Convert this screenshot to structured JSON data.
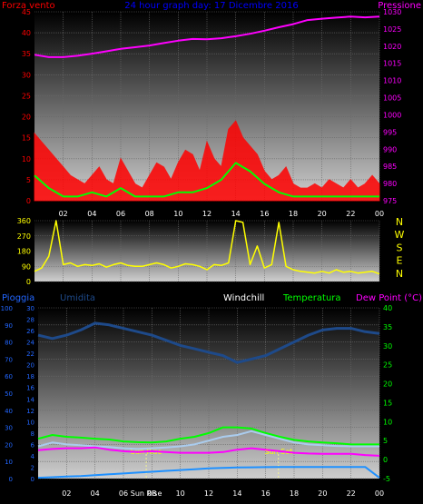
{
  "chart_data": [
    {
      "panel": "wind",
      "type": "line",
      "title": "24 hour graph day: 17 Dicembre 2016",
      "left_label": "Forza vento",
      "right_label": "Pressione",
      "left_ticks": [
        0,
        5,
        10,
        15,
        20,
        25,
        30,
        35,
        40,
        45
      ],
      "right_ticks": [
        975,
        980,
        985,
        990,
        995,
        1000,
        1005,
        1010,
        1015,
        1020,
        1025,
        1030
      ],
      "x_ticks": [
        "02",
        "04",
        "06",
        "08",
        "10",
        "12",
        "14",
        "16",
        "18",
        "20",
        "22",
        "00"
      ],
      "ylim_left": [
        0,
        45
      ],
      "ylim_right": [
        975,
        1030
      ],
      "series": [
        {
          "name": "Pressione",
          "color": "#ff00ff",
          "axis": "right",
          "x": [
            0,
            1,
            2,
            3,
            4,
            5,
            6,
            7,
            8,
            9,
            10,
            11,
            12,
            13,
            14,
            15,
            16,
            17,
            18,
            19,
            20,
            21,
            22,
            23,
            24
          ],
          "y": [
            1017.5,
            1016.8,
            1016.8,
            1017.2,
            1017.8,
            1018.5,
            1019.2,
            1019.7,
            1020.2,
            1020.9,
            1021.6,
            1022.1,
            1022.0,
            1022.3,
            1022.9,
            1023.6,
            1024.5,
            1025.5,
            1026.4,
            1027.6,
            1028.0,
            1028.3,
            1028.6,
            1028.4,
            1028.6
          ]
        },
        {
          "name": "Raffica",
          "color": "#ff0000",
          "axis": "left",
          "x": [
            0,
            0.5,
            1,
            1.5,
            2,
            2.5,
            3,
            3.5,
            4,
            4.5,
            5,
            5.5,
            6,
            6.5,
            7,
            7.5,
            8,
            8.5,
            9,
            9.5,
            10,
            10.5,
            11,
            11.5,
            12,
            12.5,
            13,
            13.5,
            14,
            14.5,
            15,
            15.5,
            16,
            16.5,
            17,
            17.5,
            18,
            18.5,
            19,
            19.5,
            20,
            20.5,
            21,
            21.5,
            22,
            22.5,
            23,
            23.5,
            24
          ],
          "y": [
            16,
            14,
            12,
            10,
            8,
            6,
            5,
            4,
            6,
            8,
            5,
            4,
            10,
            7,
            4,
            3,
            6,
            9,
            8,
            5,
            9,
            12,
            11,
            7,
            14,
            10,
            8,
            17,
            19,
            15,
            13,
            11,
            7,
            5,
            6,
            8,
            4,
            3,
            3,
            4,
            3,
            5,
            4,
            3,
            5,
            3,
            4,
            6,
            4
          ]
        },
        {
          "name": "Vento medio",
          "color": "#00ff00",
          "axis": "left",
          "x": [
            0,
            1,
            2,
            3,
            4,
            5,
            6,
            7,
            8,
            9,
            10,
            11,
            12,
            13,
            14,
            15,
            16,
            17,
            18,
            19,
            20,
            21,
            22,
            23,
            24
          ],
          "y": [
            6,
            3,
            1,
            1,
            2,
            1,
            3,
            1,
            1,
            1,
            2,
            2,
            3,
            5,
            9,
            7,
            4,
            2,
            1,
            1,
            1,
            1,
            1,
            1,
            1
          ]
        }
      ]
    },
    {
      "panel": "direction",
      "type": "line",
      "left_ticks": [
        0,
        90,
        180,
        270,
        360
      ],
      "right_ticks": [
        "N",
        "W",
        "S",
        "E",
        "N"
      ],
      "ylim": [
        0,
        360
      ],
      "series": [
        {
          "name": "Direzione",
          "color": "#ffff00",
          "x": [
            0,
            0.5,
            1,
            1.5,
            2,
            2.5,
            3,
            3.5,
            4,
            4.5,
            5,
            5.5,
            6,
            6.5,
            7,
            7.5,
            8,
            8.5,
            9,
            9.5,
            10,
            10.5,
            11,
            11.5,
            12,
            12.5,
            13,
            13.5,
            14,
            14.5,
            15,
            15.5,
            16,
            16.5,
            17,
            17.5,
            18,
            18.5,
            19,
            19.5,
            20,
            20.5,
            21,
            21.5,
            22,
            22.5,
            23,
            23.5,
            24
          ],
          "y": [
            60,
            80,
            150,
            360,
            100,
            110,
            90,
            100,
            95,
            105,
            85,
            100,
            110,
            95,
            90,
            90,
            100,
            110,
            100,
            80,
            90,
            105,
            100,
            90,
            70,
            100,
            95,
            110,
            360,
            350,
            100,
            210,
            80,
            100,
            350,
            90,
            70,
            60,
            55,
            50,
            60,
            50,
            70,
            55,
            60,
            50,
            55,
            60,
            45
          ]
        }
      ]
    },
    {
      "panel": "temperature",
      "type": "line",
      "labels": [
        "Pioggia",
        "Umidita",
        "Windchill",
        "Temperatura",
        "Dew Point (°C)"
      ],
      "rain_ticks": [
        0,
        10,
        20,
        30,
        40,
        50,
        60,
        70,
        80,
        90,
        100
      ],
      "hum_ticks": [
        0,
        2,
        4,
        6,
        8,
        10,
        12,
        14,
        16,
        18,
        20,
        22,
        24,
        26,
        28,
        30
      ],
      "temp_ticks": [
        -5,
        0,
        5,
        10,
        15,
        20,
        25,
        30,
        35,
        40
      ],
      "x_ticks": [
        "02",
        "04",
        "06",
        "08",
        "10",
        "12",
        "14",
        "16",
        "18",
        "20",
        "22",
        "00"
      ],
      "sun_rise_label": "Sun Rise",
      "sun_set_label": "Sun Set",
      "sun_rise_x": 7.6,
      "sun_set_x": 16.9,
      "ylim_temp": [
        -5,
        40
      ],
      "ylim_hum": [
        0,
        100
      ],
      "series": [
        {
          "name": "Umidita",
          "color": "#1e4a8a",
          "axis": "hum",
          "x": [
            0,
            1,
            2,
            3,
            4,
            5,
            6,
            7,
            8,
            9,
            10,
            11,
            12,
            13,
            14,
            15,
            16,
            17,
            18,
            19,
            20,
            21,
            22,
            23,
            24
          ],
          "y": [
            84,
            82,
            84,
            87,
            91,
            90,
            88,
            86,
            84,
            81,
            78,
            76,
            74,
            72,
            68,
            70,
            72,
            76,
            80,
            84,
            87,
            88,
            88,
            86,
            85
          ]
        },
        {
          "name": "Temperatura",
          "color": "#00ff00",
          "axis": "temp",
          "x": [
            0,
            1,
            2,
            3,
            4,
            5,
            6,
            7,
            8,
            9,
            10,
            11,
            12,
            13,
            14,
            15,
            16,
            17,
            18,
            19,
            20,
            21,
            22,
            23,
            24
          ],
          "y": [
            5.5,
            6.5,
            6.0,
            5.8,
            5.5,
            5.3,
            4.8,
            4.6,
            4.5,
            4.8,
            5.5,
            6.0,
            7.0,
            8.5,
            8.5,
            8.2,
            7.0,
            6.0,
            5.2,
            4.8,
            4.5,
            4.3,
            4.0,
            4.0,
            4.0
          ]
        },
        {
          "name": "Windchill",
          "color": "#aaccee",
          "axis": "temp",
          "x": [
            0,
            1,
            2,
            3,
            4,
            5,
            6,
            7,
            8,
            9,
            10,
            11,
            12,
            13,
            14,
            15,
            16,
            17,
            18,
            19,
            20,
            21,
            22,
            23,
            24
          ],
          "y": [
            3.5,
            4.5,
            4.0,
            3.8,
            3.5,
            3.3,
            3.0,
            2.8,
            3.0,
            3.2,
            3.5,
            4.0,
            5.0,
            6.0,
            6.5,
            7.5,
            6.5,
            5.5,
            4.5,
            4.0,
            3.8,
            3.6,
            3.5,
            3.5,
            3.5
          ]
        },
        {
          "name": "Dew Point",
          "color": "#ff00ff",
          "axis": "temp",
          "x": [
            0,
            1,
            2,
            3,
            4,
            5,
            6,
            7,
            8,
            9,
            10,
            11,
            12,
            13,
            14,
            15,
            16,
            17,
            18,
            19,
            20,
            21,
            22,
            23,
            24
          ],
          "y": [
            2.5,
            2.8,
            3.0,
            3.0,
            3.2,
            2.6,
            2.2,
            2.0,
            2.2,
            2.0,
            1.8,
            1.8,
            1.8,
            2.0,
            2.6,
            3.0,
            2.6,
            2.2,
            1.8,
            1.6,
            1.5,
            1.5,
            1.5,
            1.2,
            1.0
          ]
        },
        {
          "name": "Pioggia",
          "color": "#1e90ff",
          "axis": "rain",
          "x": [
            0,
            1,
            2,
            3,
            4,
            5,
            6,
            7,
            8,
            9,
            10,
            11,
            12,
            13,
            14,
            15,
            16,
            17,
            18,
            19,
            20,
            21,
            22,
            23,
            24
          ],
          "y": [
            0.5,
            0.8,
            1.2,
            1.5,
            2.0,
            2.5,
            3.0,
            3.5,
            4.0,
            4.5,
            5.0,
            5.5,
            6.0,
            6.2,
            6.5,
            6.6,
            6.7,
            6.8,
            6.8,
            6.8,
            6.8,
            6.8,
            6.8,
            6.8,
            0.5
          ]
        }
      ]
    }
  ]
}
